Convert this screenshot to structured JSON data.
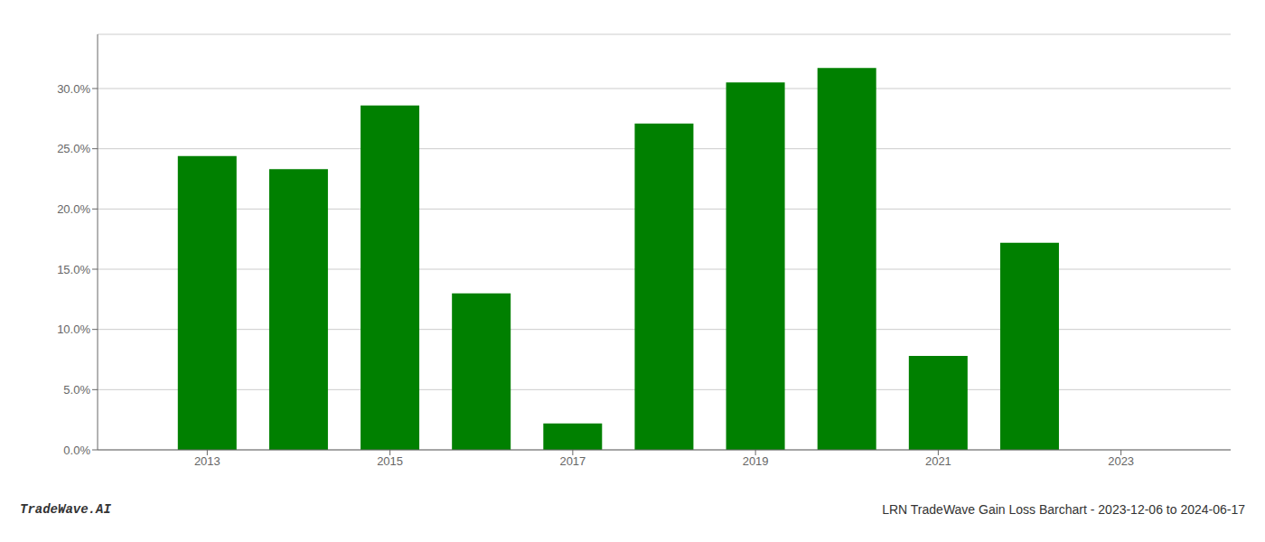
{
  "chart_data": {
    "type": "bar",
    "title": "LRN TradeWave Gain Loss Barchart - 2023-12-06 to 2024-06-17",
    "annotations": [
      "TradeWave.AI"
    ],
    "x": [
      2013,
      2014,
      2015,
      2016,
      2017,
      2018,
      2019,
      2020,
      2021,
      2022,
      2023
    ],
    "values": [
      0.244,
      0.233,
      0.286,
      0.13,
      0.022,
      0.271,
      0.305,
      0.317,
      0.078,
      0.172,
      null
    ],
    "color": "#008000",
    "xlim": [
      2011.8,
      2024.2
    ],
    "xticks": [
      2013,
      2015,
      2017,
      2019,
      2021,
      2023
    ],
    "ylim": [
      0.0,
      0.345
    ],
    "yticks": [
      {
        "value": 0.0,
        "label": "0.0%"
      },
      {
        "value": 0.05,
        "label": "5.0%"
      },
      {
        "value": 0.1,
        "label": "10.0%"
      },
      {
        "value": 0.15,
        "label": "15.0%"
      },
      {
        "value": 0.2,
        "label": "20.0%"
      },
      {
        "value": 0.25,
        "label": "25.0%"
      },
      {
        "value": 0.3,
        "label": "30.0%"
      }
    ],
    "grid": "y"
  }
}
